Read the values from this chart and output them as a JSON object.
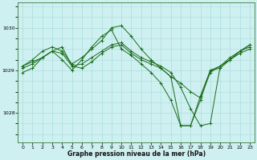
{
  "title": "Graphe pression niveau de la mer (hPa)",
  "bg_color": "#cff0f0",
  "grid_color": "#aadddd",
  "line_color": "#1a6b1a",
  "xlim": [
    -0.5,
    23.5
  ],
  "ylim": [
    1027.3,
    1030.6
  ],
  "yticks": [
    1028,
    1029,
    1030
  ],
  "xticks": [
    0,
    1,
    2,
    3,
    4,
    5,
    6,
    7,
    8,
    9,
    10,
    11,
    12,
    13,
    14,
    15,
    16,
    17,
    18,
    19,
    20,
    21,
    22,
    23
  ],
  "series": [
    [
      1029.1,
      1029.25,
      1029.45,
      1029.55,
      1029.45,
      1029.15,
      1029.3,
      1029.5,
      1029.7,
      1030.0,
      1030.05,
      1029.8,
      1029.5,
      1029.25,
      1029.05,
      1028.85,
      1028.7,
      1028.5,
      1028.35,
      1028.95,
      1029.1,
      1029.25,
      1029.4,
      1029.5
    ],
    [
      1029.1,
      1029.2,
      1029.3,
      1029.45,
      1029.4,
      1029.1,
      1029.15,
      1029.3,
      1029.45,
      1029.6,
      1029.65,
      1029.45,
      1029.3,
      1029.2,
      1029.1,
      1028.95,
      1028.6,
      1028.1,
      1027.7,
      1027.75,
      1029.1,
      1029.3,
      1029.45,
      1029.55
    ],
    [
      1029.05,
      1029.15,
      1029.3,
      1029.45,
      1029.55,
      1029.1,
      1029.05,
      1029.2,
      1029.4,
      1029.55,
      1029.6,
      1029.4,
      1029.25,
      1029.15,
      1029.05,
      1028.85,
      1027.7,
      1027.7,
      1028.4,
      1029.0,
      1029.1,
      1029.25,
      1029.45,
      1029.6
    ],
    [
      1028.95,
      1029.05,
      1029.3,
      1029.45,
      1029.25,
      1029.0,
      1029.25,
      1029.55,
      1029.8,
      1029.95,
      1029.5,
      1029.35,
      1029.15,
      1028.95,
      1028.7,
      1028.3,
      1027.7,
      1027.7,
      1028.3,
      1029.0,
      1029.05,
      1029.25,
      1029.45,
      1029.6
    ]
  ]
}
